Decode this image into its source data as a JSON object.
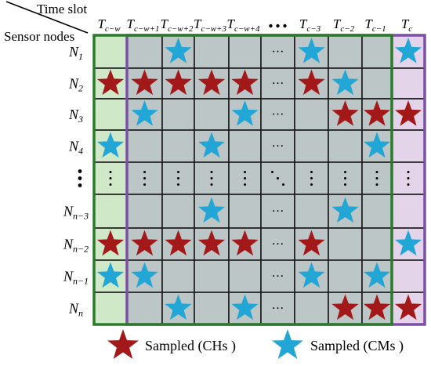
{
  "header": {
    "time_slot_label": "Time slot",
    "sensor_nodes_label": "Sensor nodes"
  },
  "columns": [
    {
      "base": "T",
      "sub": "c−w"
    },
    {
      "base": "T",
      "sub": "c−w+1"
    },
    {
      "base": "T",
      "sub": "c−w+2"
    },
    {
      "base": "T",
      "sub": "c−w+3"
    },
    {
      "base": "T",
      "sub": "c−w+4"
    },
    {
      "base": "",
      "sub": "",
      "ellipsis": true
    },
    {
      "base": "T",
      "sub": "c−3"
    },
    {
      "base": "T",
      "sub": "c−2"
    },
    {
      "base": "T",
      "sub": "c−1"
    },
    {
      "base": "T",
      "sub": "c"
    }
  ],
  "rows": [
    {
      "base": "N",
      "sub": "1"
    },
    {
      "base": "N",
      "sub": "2"
    },
    {
      "base": "N",
      "sub": "3"
    },
    {
      "base": "N",
      "sub": "4"
    },
    {
      "base": "",
      "sub": "",
      "ellipsis": true
    },
    {
      "base": "N",
      "sub": "n−3"
    },
    {
      "base": "N",
      "sub": "n−2"
    },
    {
      "base": "N",
      "sub": "n−1"
    },
    {
      "base": "N",
      "sub": "n"
    }
  ],
  "cell_ellipsis": "···",
  "grid": [
    [
      "",
      "",
      "CM",
      "",
      "",
      "dots",
      "CM",
      "",
      "",
      "CM"
    ],
    [
      "CH",
      "CH",
      "CH",
      "CH",
      "CH",
      "dots",
      "CH",
      "CM",
      "",
      ""
    ],
    [
      "",
      "CM",
      "",
      "",
      "CM",
      "dots",
      "",
      "CH",
      "CH",
      "CH"
    ],
    [
      "CM",
      "",
      "",
      "CM",
      "",
      "dots",
      "",
      "",
      "CM",
      ""
    ],
    [
      "vdots",
      "vdots",
      "vdots",
      "vdots",
      "vdots",
      "ddots",
      "vdots",
      "vdots",
      "vdots",
      "vdots"
    ],
    [
      "",
      "",
      "",
      "CM",
      "",
      "dots",
      "",
      "CM",
      "",
      ""
    ],
    [
      "CH",
      "CH",
      "CH",
      "CH",
      "CH",
      "dots",
      "CH",
      "",
      "",
      "CM"
    ],
    [
      "CM",
      "CM",
      "",
      "",
      "",
      "dots",
      "CM",
      "",
      "CM",
      ""
    ],
    [
      "",
      "",
      "CM",
      "",
      "CM",
      "dots",
      "",
      "CH",
      "CH",
      "CH"
    ]
  ],
  "legend": {
    "ch_label": "Sampled (CHs )",
    "cm_label": "Sampled (CMs )"
  },
  "colors": {
    "cell_gray": "#bcc6c6",
    "first_col_fill": "#cfe8c8",
    "last_col_fill": "#e3d4ea",
    "green_border": "#2a7a2a",
    "purple_border": "#7b4fa6",
    "ch_star": "#a31919",
    "cm_star": "#22a6d6"
  }
}
